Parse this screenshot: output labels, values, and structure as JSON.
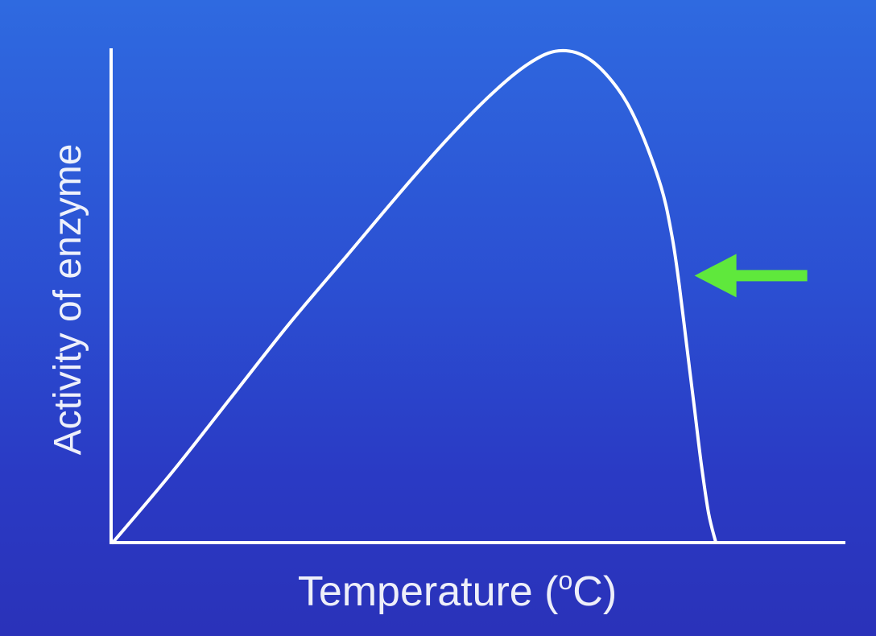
{
  "chart_data": {
    "type": "line",
    "title": "",
    "xlabel": "Temperature (oC)",
    "xlabel_parts": {
      "before": "Temperature (",
      "superscript": "o",
      "after": "C)"
    },
    "ylabel": "Activity of enzyme",
    "xlim": [
      0,
      100
    ],
    "ylim": [
      0,
      100
    ],
    "grid": false,
    "ticks_shown": false,
    "series": [
      {
        "line_color": "#ffffff",
        "x": [
          0,
          8,
          16,
          24,
          32,
          40,
          46,
          52,
          57,
          61,
          65,
          69,
          72,
          75,
          76.5,
          77.5,
          78.5,
          79.5,
          80.5,
          81.5,
          82.5
        ],
        "y": [
          0,
          14,
          29,
          44,
          58,
          72,
          82,
          91,
          97,
          99.5,
          98,
          92,
          84,
          72,
          62,
          52,
          40,
          28,
          16,
          6,
          0
        ]
      }
    ],
    "annotations": [
      {
        "kind": "arrow",
        "color": "#5fe83c",
        "points_to": {
          "x": 78.7,
          "y": 54
        }
      }
    ]
  }
}
